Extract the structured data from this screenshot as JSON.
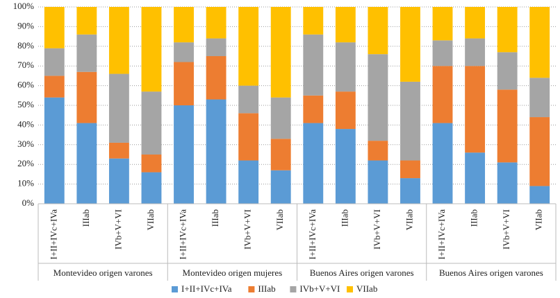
{
  "chart_data": {
    "type": "stacked_bar_100",
    "groups": [
      "Montevideo origen varones",
      "Montevideo origen mujeres",
      "Buenos Aires origen varones",
      "Buenos Aires origen varones"
    ],
    "categories": [
      "I+II+IVc+IVa",
      "IIIab",
      "IVb+V+VI",
      "VIIab",
      "I+II+IVc+IVa",
      "IIIab",
      "IVb+V+VI",
      "VIIab",
      "I+II+IVc+IVa",
      "IIIab",
      "IVb+V+VI",
      "VIIab",
      "I+II+IVc+IVa",
      "IIIab",
      "IVb+V+VI",
      "VIIab"
    ],
    "series": [
      {
        "name": "I+II+IVc+IVa",
        "color": "#5b9bd5",
        "values": [
          54,
          41,
          23,
          16,
          50,
          53,
          22,
          17,
          41,
          38,
          22,
          13,
          41,
          26,
          21,
          9
        ]
      },
      {
        "name": "IIIab",
        "color": "#ed7d31",
        "values": [
          11,
          26,
          8,
          9,
          22,
          22,
          24,
          16,
          14,
          19,
          10,
          9,
          29,
          44,
          37,
          35
        ]
      },
      {
        "name": "IVb+V+VI",
        "color": "#a5a5a5",
        "values": [
          14,
          19,
          35,
          32,
          10,
          9,
          14,
          21,
          31,
          25,
          44,
          40,
          13,
          14,
          19,
          20
        ]
      },
      {
        "name": "VIIab",
        "color": "#ffc000",
        "values": [
          21,
          14,
          34,
          43,
          18,
          16,
          40,
          46,
          14,
          18,
          24,
          38,
          17,
          16,
          23,
          36
        ]
      }
    ],
    "ylim": [
      0,
      100
    ],
    "yticks": [
      {
        "value": 0,
        "label": "0%"
      },
      {
        "value": 10,
        "label": "10%"
      },
      {
        "value": 20,
        "label": "20%"
      },
      {
        "value": 30,
        "label": "30%"
      },
      {
        "value": 40,
        "label": "40%"
      },
      {
        "value": 50,
        "label": "50%"
      },
      {
        "value": 60,
        "label": "60%"
      },
      {
        "value": 70,
        "label": "70%"
      },
      {
        "value": 80,
        "label": "80%"
      },
      {
        "value": 90,
        "label": "90%"
      },
      {
        "value": 100,
        "label": "100%"
      }
    ],
    "grid": true,
    "legend": "bottom"
  }
}
